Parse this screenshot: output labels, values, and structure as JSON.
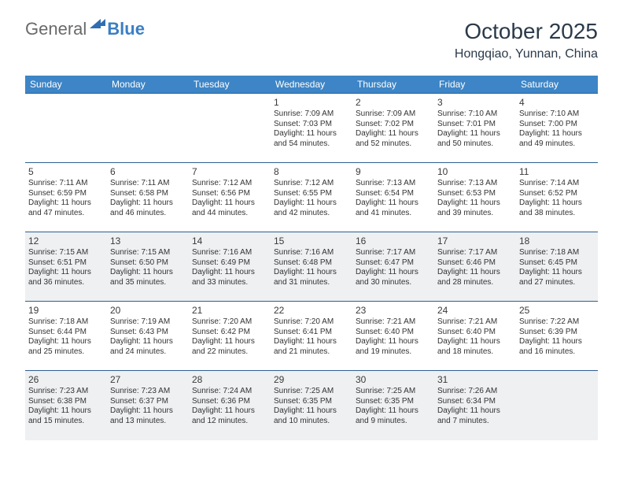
{
  "brand": {
    "part1": "General",
    "part2": "Blue"
  },
  "title": "October 2025",
  "location": "Hongqiao, Yunnan, China",
  "colors": {
    "header_bg": "#3d85c6",
    "header_text": "#ffffff",
    "row_sep": "#2f5f93",
    "alt_row_bg": "#eef0f2",
    "page_bg": "#ffffff",
    "logo_gray": "#6a6a6a",
    "logo_blue": "#3b7fc4"
  },
  "weekdays": [
    "Sunday",
    "Monday",
    "Tuesday",
    "Wednesday",
    "Thursday",
    "Friday",
    "Saturday"
  ],
  "weeks": [
    {
      "alt": false,
      "days": [
        null,
        null,
        null,
        {
          "n": "1",
          "sr": "7:09 AM",
          "ss": "7:03 PM",
          "dl": "11 hours and 54 minutes."
        },
        {
          "n": "2",
          "sr": "7:09 AM",
          "ss": "7:02 PM",
          "dl": "11 hours and 52 minutes."
        },
        {
          "n": "3",
          "sr": "7:10 AM",
          "ss": "7:01 PM",
          "dl": "11 hours and 50 minutes."
        },
        {
          "n": "4",
          "sr": "7:10 AM",
          "ss": "7:00 PM",
          "dl": "11 hours and 49 minutes."
        }
      ]
    },
    {
      "alt": false,
      "days": [
        {
          "n": "5",
          "sr": "7:11 AM",
          "ss": "6:59 PM",
          "dl": "11 hours and 47 minutes."
        },
        {
          "n": "6",
          "sr": "7:11 AM",
          "ss": "6:58 PM",
          "dl": "11 hours and 46 minutes."
        },
        {
          "n": "7",
          "sr": "7:12 AM",
          "ss": "6:56 PM",
          "dl": "11 hours and 44 minutes."
        },
        {
          "n": "8",
          "sr": "7:12 AM",
          "ss": "6:55 PM",
          "dl": "11 hours and 42 minutes."
        },
        {
          "n": "9",
          "sr": "7:13 AM",
          "ss": "6:54 PM",
          "dl": "11 hours and 41 minutes."
        },
        {
          "n": "10",
          "sr": "7:13 AM",
          "ss": "6:53 PM",
          "dl": "11 hours and 39 minutes."
        },
        {
          "n": "11",
          "sr": "7:14 AM",
          "ss": "6:52 PM",
          "dl": "11 hours and 38 minutes."
        }
      ]
    },
    {
      "alt": true,
      "days": [
        {
          "n": "12",
          "sr": "7:15 AM",
          "ss": "6:51 PM",
          "dl": "11 hours and 36 minutes."
        },
        {
          "n": "13",
          "sr": "7:15 AM",
          "ss": "6:50 PM",
          "dl": "11 hours and 35 minutes."
        },
        {
          "n": "14",
          "sr": "7:16 AM",
          "ss": "6:49 PM",
          "dl": "11 hours and 33 minutes."
        },
        {
          "n": "15",
          "sr": "7:16 AM",
          "ss": "6:48 PM",
          "dl": "11 hours and 31 minutes."
        },
        {
          "n": "16",
          "sr": "7:17 AM",
          "ss": "6:47 PM",
          "dl": "11 hours and 30 minutes."
        },
        {
          "n": "17",
          "sr": "7:17 AM",
          "ss": "6:46 PM",
          "dl": "11 hours and 28 minutes."
        },
        {
          "n": "18",
          "sr": "7:18 AM",
          "ss": "6:45 PM",
          "dl": "11 hours and 27 minutes."
        }
      ]
    },
    {
      "alt": false,
      "days": [
        {
          "n": "19",
          "sr": "7:18 AM",
          "ss": "6:44 PM",
          "dl": "11 hours and 25 minutes."
        },
        {
          "n": "20",
          "sr": "7:19 AM",
          "ss": "6:43 PM",
          "dl": "11 hours and 24 minutes."
        },
        {
          "n": "21",
          "sr": "7:20 AM",
          "ss": "6:42 PM",
          "dl": "11 hours and 22 minutes."
        },
        {
          "n": "22",
          "sr": "7:20 AM",
          "ss": "6:41 PM",
          "dl": "11 hours and 21 minutes."
        },
        {
          "n": "23",
          "sr": "7:21 AM",
          "ss": "6:40 PM",
          "dl": "11 hours and 19 minutes."
        },
        {
          "n": "24",
          "sr": "7:21 AM",
          "ss": "6:40 PM",
          "dl": "11 hours and 18 minutes."
        },
        {
          "n": "25",
          "sr": "7:22 AM",
          "ss": "6:39 PM",
          "dl": "11 hours and 16 minutes."
        }
      ]
    },
    {
      "alt": true,
      "days": [
        {
          "n": "26",
          "sr": "7:23 AM",
          "ss": "6:38 PM",
          "dl": "11 hours and 15 minutes."
        },
        {
          "n": "27",
          "sr": "7:23 AM",
          "ss": "6:37 PM",
          "dl": "11 hours and 13 minutes."
        },
        {
          "n": "28",
          "sr": "7:24 AM",
          "ss": "6:36 PM",
          "dl": "11 hours and 12 minutes."
        },
        {
          "n": "29",
          "sr": "7:25 AM",
          "ss": "6:35 PM",
          "dl": "11 hours and 10 minutes."
        },
        {
          "n": "30",
          "sr": "7:25 AM",
          "ss": "6:35 PM",
          "dl": "11 hours and 9 minutes."
        },
        {
          "n": "31",
          "sr": "7:26 AM",
          "ss": "6:34 PM",
          "dl": "11 hours and 7 minutes."
        },
        null
      ]
    }
  ],
  "labels": {
    "sunrise": "Sunrise: ",
    "sunset": "Sunset: ",
    "daylight": "Daylight: "
  }
}
